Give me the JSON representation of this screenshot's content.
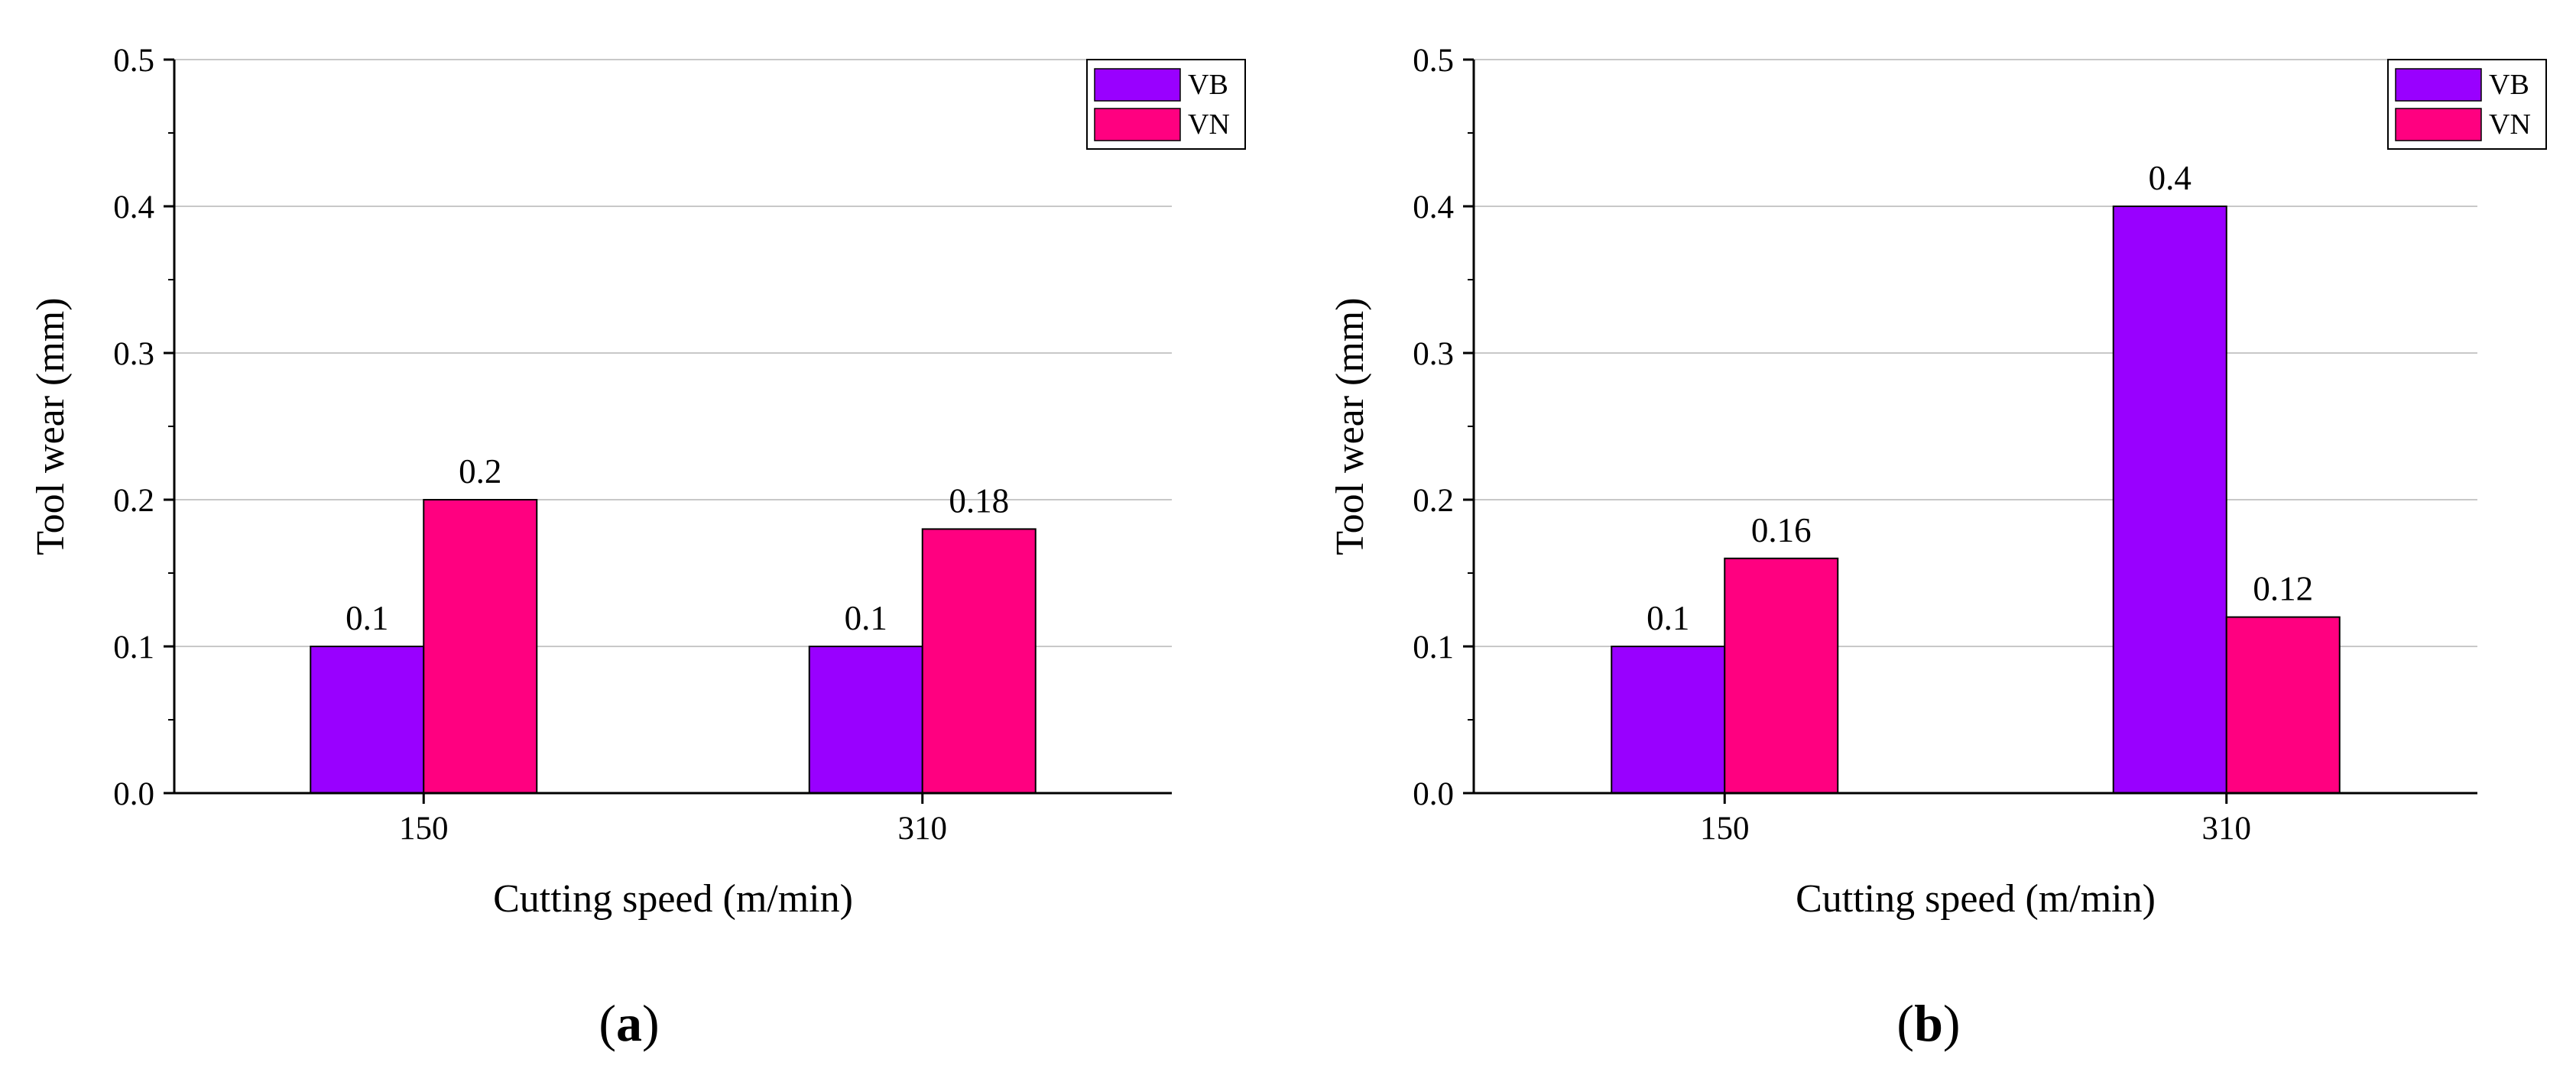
{
  "colors": {
    "VB": "#9900ff",
    "VN": "#ff0080",
    "axis": "#000000",
    "grid": "#c8c8c8",
    "background": "#ffffff"
  },
  "chart_data": [
    {
      "type": "bar",
      "panel_label": "a",
      "categories": [
        "150",
        "310"
      ],
      "series": [
        {
          "name": "VB",
          "values": [
            0.1,
            0.1
          ],
          "labels": [
            "0.1",
            "0.1"
          ]
        },
        {
          "name": "VN",
          "values": [
            0.2,
            0.18
          ],
          "labels": [
            "0.2",
            "0.18"
          ]
        }
      ],
      "xlabel": "Cutting speed (m/min)",
      "ylabel": "Tool wear (mm)",
      "ylim": [
        0,
        0.5
      ],
      "yticks": [
        "0.0",
        "0.1",
        "0.2",
        "0.3",
        "0.4",
        "0.5"
      ],
      "grid": true,
      "legend": "top-right"
    },
    {
      "type": "bar",
      "panel_label": "b",
      "categories": [
        "150",
        "310"
      ],
      "series": [
        {
          "name": "VB",
          "values": [
            0.1,
            0.4
          ],
          "labels": [
            "0.1",
            "0.4"
          ]
        },
        {
          "name": "VN",
          "values": [
            0.16,
            0.12
          ],
          "labels": [
            "0.16",
            "0.12"
          ]
        }
      ],
      "xlabel": "Cutting speed (m/min)",
      "ylabel": "Tool wear (mm)",
      "ylim": [
        0,
        0.5
      ],
      "yticks": [
        "0.0",
        "0.1",
        "0.2",
        "0.3",
        "0.4",
        "0.5"
      ],
      "grid": true,
      "legend": "top-right"
    }
  ]
}
